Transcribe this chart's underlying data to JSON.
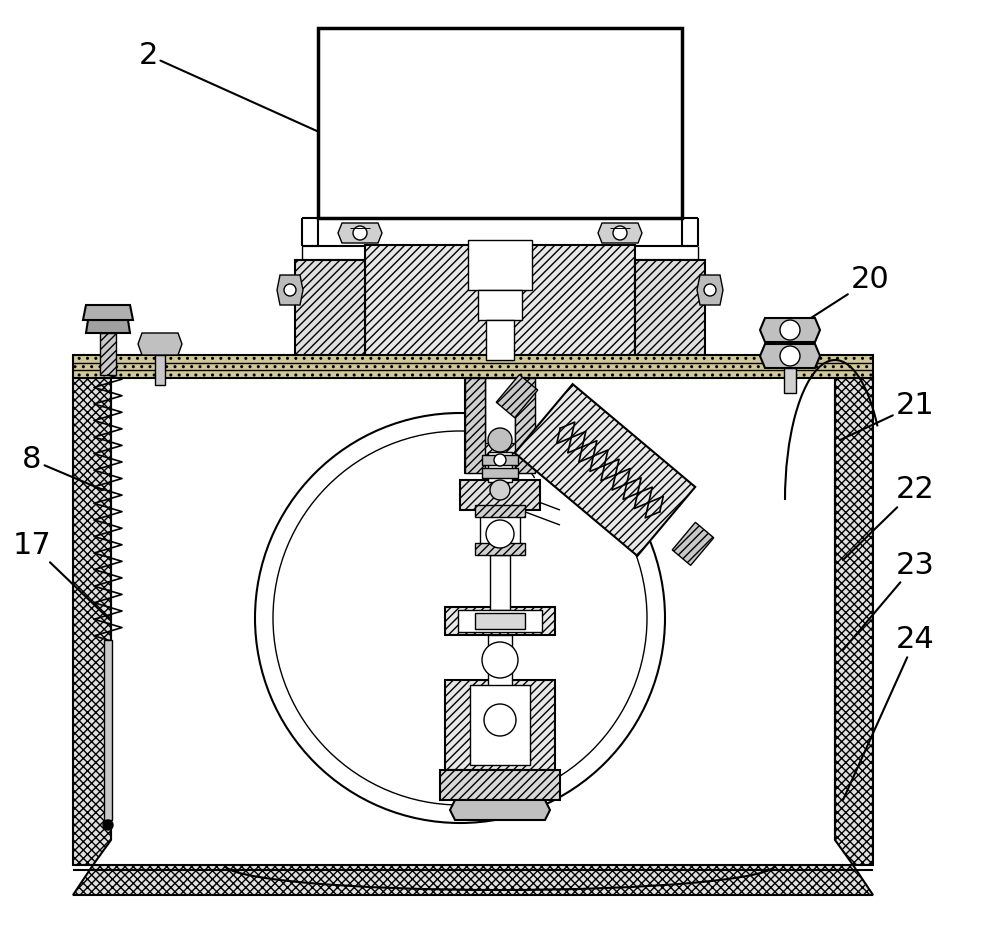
{
  "background_color": "#ffffff",
  "line_color": "#000000",
  "label_color": "#000000",
  "label_fontsize": 22,
  "figsize": [
    10.0,
    9.44
  ],
  "dpi": 100
}
